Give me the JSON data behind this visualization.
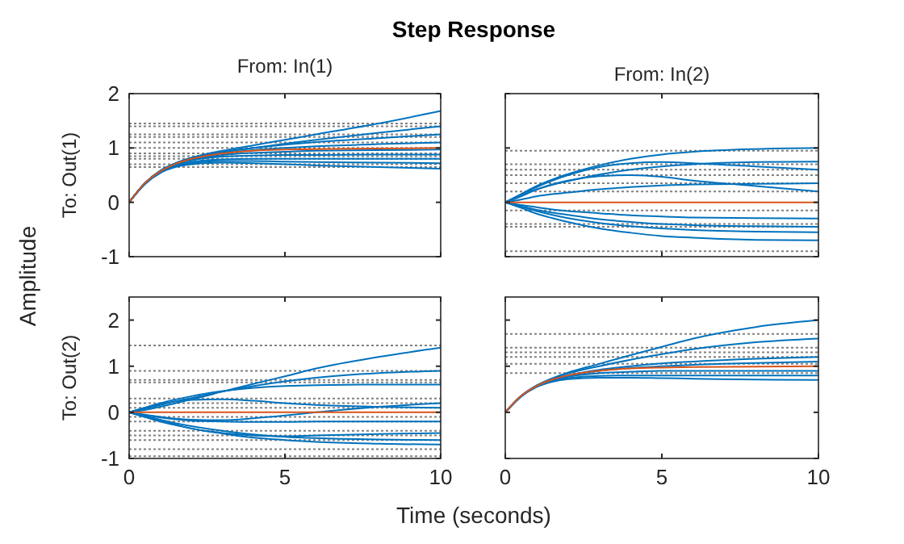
{
  "chart_data": [
    {
      "type": "line",
      "title": "Step Response",
      "subtitle": "From: In(1)",
      "ylabel": "To: Out(1)",
      "annotations": [
        "Time (seconds)",
        "Amplitude"
      ],
      "tick_labels": "y",
      "grid": false,
      "line_style": "solid",
      "marker": "none",
      "xlim": [
        0,
        10
      ],
      "xticks": [
        0,
        5,
        10
      ],
      "ylim": [
        -1,
        2
      ],
      "yticks": [
        -1,
        0,
        1,
        2
      ],
      "x": [
        0,
        0.5,
        1,
        1.5,
        2,
        3,
        4,
        5,
        6,
        8,
        10
      ],
      "ref_lines": [
        {
          "axis": "y",
          "value": 1.45,
          "color": "#808080",
          "line_style": "dotted"
        },
        {
          "axis": "y",
          "value": 1.4,
          "color": "#808080",
          "line_style": "dotted"
        },
        {
          "axis": "y",
          "value": 1.25,
          "color": "#808080",
          "line_style": "dotted"
        },
        {
          "axis": "y",
          "value": 1.2,
          "color": "#808080",
          "line_style": "dotted"
        },
        {
          "axis": "y",
          "value": 1.1,
          "color": "#808080",
          "line_style": "dotted"
        },
        {
          "axis": "y",
          "value": 1.0,
          "color": "#808080",
          "line_style": "dotted"
        },
        {
          "axis": "y",
          "value": 0.9,
          "color": "#808080",
          "line_style": "dotted"
        },
        {
          "axis": "y",
          "value": 0.85,
          "color": "#808080",
          "line_style": "dotted"
        },
        {
          "axis": "y",
          "value": 0.8,
          "color": "#808080",
          "line_style": "dotted"
        },
        {
          "axis": "y",
          "value": 0.7,
          "color": "#808080",
          "line_style": "dotted"
        },
        {
          "axis": "y",
          "value": 0.65,
          "color": "#808080",
          "line_style": "dotted"
        }
      ],
      "series": [
        {
          "color": "#0072bd",
          "values": [
            0,
            0.35,
            0.58,
            0.72,
            0.82,
            0.95,
            1.05,
            1.15,
            1.25,
            1.45,
            1.68
          ]
        },
        {
          "color": "#0072bd",
          "values": [
            0,
            0.35,
            0.58,
            0.72,
            0.81,
            0.92,
            1.0,
            1.08,
            1.15,
            1.28,
            1.4
          ]
        },
        {
          "color": "#0072bd",
          "values": [
            0,
            0.35,
            0.57,
            0.71,
            0.8,
            0.9,
            0.96,
            1.0,
            1.03,
            1.07,
            1.1
          ]
        },
        {
          "color": "#0072bd",
          "values": [
            0,
            0.35,
            0.57,
            0.7,
            0.78,
            0.87,
            0.91,
            0.93,
            0.95,
            0.96,
            0.97
          ]
        },
        {
          "color": "#0072bd",
          "values": [
            0,
            0.34,
            0.56,
            0.69,
            0.77,
            0.84,
            0.86,
            0.87,
            0.87,
            0.88,
            0.88
          ]
        },
        {
          "color": "#0072bd",
          "values": [
            0,
            0.34,
            0.55,
            0.67,
            0.74,
            0.79,
            0.8,
            0.8,
            0.8,
            0.8,
            0.8
          ]
        },
        {
          "color": "#0072bd",
          "values": [
            0,
            0.34,
            0.55,
            0.66,
            0.72,
            0.76,
            0.76,
            0.75,
            0.74,
            0.73,
            0.72
          ]
        },
        {
          "color": "#0072bd",
          "values": [
            0,
            0.33,
            0.54,
            0.65,
            0.7,
            0.73,
            0.72,
            0.7,
            0.68,
            0.65,
            0.62
          ]
        },
        {
          "color": "#0072bd",
          "values": [
            0,
            0.35,
            0.58,
            0.72,
            0.82,
            0.93,
            1.0,
            1.06,
            1.11,
            1.18,
            1.25
          ]
        },
        {
          "color": "#d95319",
          "values": [
            0,
            0.35,
            0.57,
            0.71,
            0.8,
            0.9,
            0.95,
            0.97,
            0.98,
            0.99,
            1.0
          ]
        }
      ]
    },
    {
      "type": "line",
      "subtitle": "From: In(2)",
      "tick_labels": false,
      "grid": false,
      "line_style": "solid",
      "marker": "none",
      "xlim": [
        0,
        10
      ],
      "xticks": [
        0,
        5,
        10
      ],
      "ylim": [
        -1,
        2
      ],
      "yticks": [
        -1,
        0,
        1,
        2
      ],
      "x": [
        0,
        0.5,
        1,
        1.5,
        2,
        3,
        4,
        5,
        6,
        8,
        10
      ],
      "ref_lines": [
        {
          "axis": "y",
          "value": 0.95,
          "color": "#808080",
          "line_style": "dotted"
        },
        {
          "axis": "y",
          "value": 0.7,
          "color": "#808080",
          "line_style": "dotted"
        },
        {
          "axis": "y",
          "value": 0.6,
          "color": "#808080",
          "line_style": "dotted"
        },
        {
          "axis": "y",
          "value": 0.5,
          "color": "#808080",
          "line_style": "dotted"
        },
        {
          "axis": "y",
          "value": 0.35,
          "color": "#808080",
          "line_style": "dotted"
        },
        {
          "axis": "y",
          "value": 0.2,
          "color": "#808080",
          "line_style": "dotted"
        },
        {
          "axis": "y",
          "value": -0.15,
          "color": "#808080",
          "line_style": "dotted"
        },
        {
          "axis": "y",
          "value": -0.4,
          "color": "#808080",
          "line_style": "dotted"
        },
        {
          "axis": "y",
          "value": -0.45,
          "color": "#808080",
          "line_style": "dotted"
        },
        {
          "axis": "y",
          "value": -0.9,
          "color": "#808080",
          "line_style": "dotted"
        }
      ],
      "series": [
        {
          "color": "#0072bd",
          "values": [
            0,
            0.15,
            0.3,
            0.42,
            0.52,
            0.68,
            0.8,
            0.88,
            0.93,
            0.98,
            1.0
          ]
        },
        {
          "color": "#0072bd",
          "values": [
            0,
            0.11,
            0.23,
            0.32,
            0.39,
            0.51,
            0.6,
            0.66,
            0.7,
            0.74,
            0.75
          ]
        },
        {
          "color": "#0072bd",
          "values": [
            0,
            0.14,
            0.28,
            0.4,
            0.5,
            0.65,
            0.72,
            0.74,
            0.72,
            0.66,
            0.6
          ]
        },
        {
          "color": "#0072bd",
          "values": [
            0,
            0.05,
            0.11,
            0.15,
            0.18,
            0.24,
            0.28,
            0.31,
            0.33,
            0.34,
            0.35
          ]
        },
        {
          "color": "#0072bd",
          "values": [
            0,
            0.12,
            0.24,
            0.33,
            0.4,
            0.48,
            0.5,
            0.47,
            0.4,
            0.3,
            0.2
          ]
        },
        {
          "color": "#0072bd",
          "values": [
            0,
            -0.05,
            -0.09,
            -0.13,
            -0.16,
            -0.2,
            -0.24,
            -0.26,
            -0.28,
            -0.29,
            -0.3
          ]
        },
        {
          "color": "#0072bd",
          "values": [
            0,
            -0.07,
            -0.14,
            -0.19,
            -0.23,
            -0.31,
            -0.36,
            -0.4,
            -0.42,
            -0.44,
            -0.45
          ]
        },
        {
          "color": "#0072bd",
          "values": [
            0,
            -0.08,
            -0.16,
            -0.23,
            -0.29,
            -0.38,
            -0.44,
            -0.48,
            -0.51,
            -0.54,
            -0.55
          ]
        },
        {
          "color": "#0072bd",
          "values": [
            0,
            -0.1,
            -0.21,
            -0.29,
            -0.36,
            -0.48,
            -0.56,
            -0.62,
            -0.65,
            -0.69,
            -0.7
          ]
        },
        {
          "color": "#d95319",
          "values": [
            0,
            0,
            0,
            0,
            0,
            0,
            0,
            0,
            0,
            0,
            0
          ]
        }
      ]
    },
    {
      "type": "line",
      "ylabel": "To: Out(2)",
      "grid": false,
      "line_style": "solid",
      "marker": "none",
      "xlim": [
        0,
        10
      ],
      "xticks": [
        0,
        5,
        10
      ],
      "ylim": [
        -1,
        2.5
      ],
      "yticks": [
        -1,
        0,
        1,
        2
      ],
      "x": [
        0,
        0.5,
        1,
        1.5,
        2,
        3,
        4,
        5,
        6,
        8,
        10
      ],
      "ref_lines": [
        {
          "axis": "y",
          "value": 1.45,
          "color": "#808080",
          "line_style": "dotted"
        },
        {
          "axis": "y",
          "value": 0.9,
          "color": "#808080",
          "line_style": "dotted"
        },
        {
          "axis": "y",
          "value": 0.7,
          "color": "#808080",
          "line_style": "dotted"
        },
        {
          "axis": "y",
          "value": 0.65,
          "color": "#808080",
          "line_style": "dotted"
        },
        {
          "axis": "y",
          "value": 0.3,
          "color": "#808080",
          "line_style": "dotted"
        },
        {
          "axis": "y",
          "value": 0.2,
          "color": "#808080",
          "line_style": "dotted"
        },
        {
          "axis": "y",
          "value": 0.1,
          "color": "#808080",
          "line_style": "dotted"
        },
        {
          "axis": "y",
          "value": -0.1,
          "color": "#808080",
          "line_style": "dotted"
        },
        {
          "axis": "y",
          "value": -0.2,
          "color": "#808080",
          "line_style": "dotted"
        },
        {
          "axis": "y",
          "value": -0.4,
          "color": "#808080",
          "line_style": "dotted"
        },
        {
          "axis": "y",
          "value": -0.5,
          "color": "#808080",
          "line_style": "dotted"
        },
        {
          "axis": "y",
          "value": -0.6,
          "color": "#808080",
          "line_style": "dotted"
        },
        {
          "axis": "y",
          "value": -0.8,
          "color": "#808080",
          "line_style": "dotted"
        },
        {
          "axis": "y",
          "value": -0.95,
          "color": "#808080",
          "line_style": "dotted"
        }
      ],
      "series": [
        {
          "color": "#0072bd",
          "values": [
            0,
            0.05,
            0.12,
            0.2,
            0.28,
            0.45,
            0.62,
            0.78,
            0.95,
            1.2,
            1.4
          ]
        },
        {
          "color": "#0072bd",
          "values": [
            0,
            0.08,
            0.16,
            0.24,
            0.31,
            0.45,
            0.57,
            0.67,
            0.75,
            0.85,
            0.9
          ]
        },
        {
          "color": "#0072bd",
          "values": [
            0,
            0.1,
            0.2,
            0.28,
            0.35,
            0.46,
            0.53,
            0.57,
            0.59,
            0.6,
            0.6
          ]
        },
        {
          "color": "#0072bd",
          "values": [
            0,
            -0.05,
            -0.1,
            -0.14,
            -0.16,
            -0.17,
            -0.13,
            -0.07,
            0,
            0.12,
            0.2
          ]
        },
        {
          "color": "#0072bd",
          "values": [
            0,
            0.1,
            0.18,
            0.24,
            0.27,
            0.28,
            0.25,
            0.2,
            0.16,
            0.12,
            0.1
          ]
        },
        {
          "color": "#0072bd",
          "values": [
            0,
            -0.06,
            -0.11,
            -0.15,
            -0.18,
            -0.2,
            -0.21,
            -0.21,
            -0.2,
            -0.2,
            -0.2
          ]
        },
        {
          "color": "#0072bd",
          "values": [
            0,
            -0.1,
            -0.2,
            -0.28,
            -0.35,
            -0.45,
            -0.5,
            -0.52,
            -0.5,
            -0.47,
            -0.45
          ]
        },
        {
          "color": "#0072bd",
          "values": [
            0,
            -0.08,
            -0.16,
            -0.24,
            -0.3,
            -0.4,
            -0.48,
            -0.53,
            -0.56,
            -0.59,
            -0.6
          ]
        },
        {
          "color": "#0072bd",
          "values": [
            0,
            -0.1,
            -0.19,
            -0.27,
            -0.35,
            -0.46,
            -0.55,
            -0.6,
            -0.64,
            -0.68,
            -0.7
          ]
        },
        {
          "color": "#d95319",
          "values": [
            0,
            0,
            0,
            0,
            0,
            0,
            0,
            0,
            0,
            0,
            0
          ]
        }
      ]
    },
    {
      "type": "line",
      "tick_labels": "x",
      "grid": false,
      "line_style": "solid",
      "marker": "none",
      "xlim": [
        0,
        10
      ],
      "xticks": [
        0,
        5,
        10
      ],
      "ylim": [
        -1,
        2.5
      ],
      "yticks": [
        -1,
        0,
        1,
        2
      ],
      "x": [
        0,
        0.5,
        1,
        1.5,
        2,
        3,
        4,
        5,
        6,
        8,
        10
      ],
      "ref_lines": [
        {
          "axis": "y",
          "value": 1.7,
          "color": "#808080",
          "line_style": "dotted"
        },
        {
          "axis": "y",
          "value": 1.4,
          "color": "#808080",
          "line_style": "dotted"
        },
        {
          "axis": "y",
          "value": 1.3,
          "color": "#808080",
          "line_style": "dotted"
        },
        {
          "axis": "y",
          "value": 1.2,
          "color": "#808080",
          "line_style": "dotted"
        },
        {
          "axis": "y",
          "value": 1.05,
          "color": "#808080",
          "line_style": "dotted"
        },
        {
          "axis": "y",
          "value": 0.85,
          "color": "#808080",
          "line_style": "dotted"
        }
      ],
      "series": [
        {
          "color": "#0072bd",
          "values": [
            0,
            0.35,
            0.58,
            0.74,
            0.86,
            1.05,
            1.24,
            1.42,
            1.6,
            1.85,
            2.0
          ]
        },
        {
          "color": "#0072bd",
          "values": [
            0,
            0.35,
            0.58,
            0.73,
            0.84,
            1.0,
            1.14,
            1.26,
            1.37,
            1.52,
            1.6
          ]
        },
        {
          "color": "#0072bd",
          "values": [
            0,
            0.35,
            0.57,
            0.71,
            0.8,
            0.92,
            1.0,
            1.06,
            1.1,
            1.16,
            1.2
          ]
        },
        {
          "color": "#0072bd",
          "values": [
            0,
            0.35,
            0.57,
            0.7,
            0.79,
            0.9,
            0.96,
            1.0,
            1.03,
            1.07,
            1.1
          ]
        },
        {
          "color": "#0072bd",
          "values": [
            0,
            0.34,
            0.56,
            0.69,
            0.77,
            0.85,
            0.88,
            0.9,
            0.9,
            0.9,
            0.9
          ]
        },
        {
          "color": "#0072bd",
          "values": [
            0,
            0.34,
            0.55,
            0.67,
            0.74,
            0.79,
            0.8,
            0.8,
            0.8,
            0.8,
            0.8
          ]
        },
        {
          "color": "#0072bd",
          "values": [
            0,
            0.34,
            0.55,
            0.66,
            0.72,
            0.75,
            0.75,
            0.74,
            0.73,
            0.71,
            0.7
          ]
        },
        {
          "color": "#d95319",
          "values": [
            0,
            0.35,
            0.57,
            0.71,
            0.8,
            0.9,
            0.95,
            0.97,
            0.98,
            0.99,
            1.0
          ]
        }
      ]
    }
  ]
}
